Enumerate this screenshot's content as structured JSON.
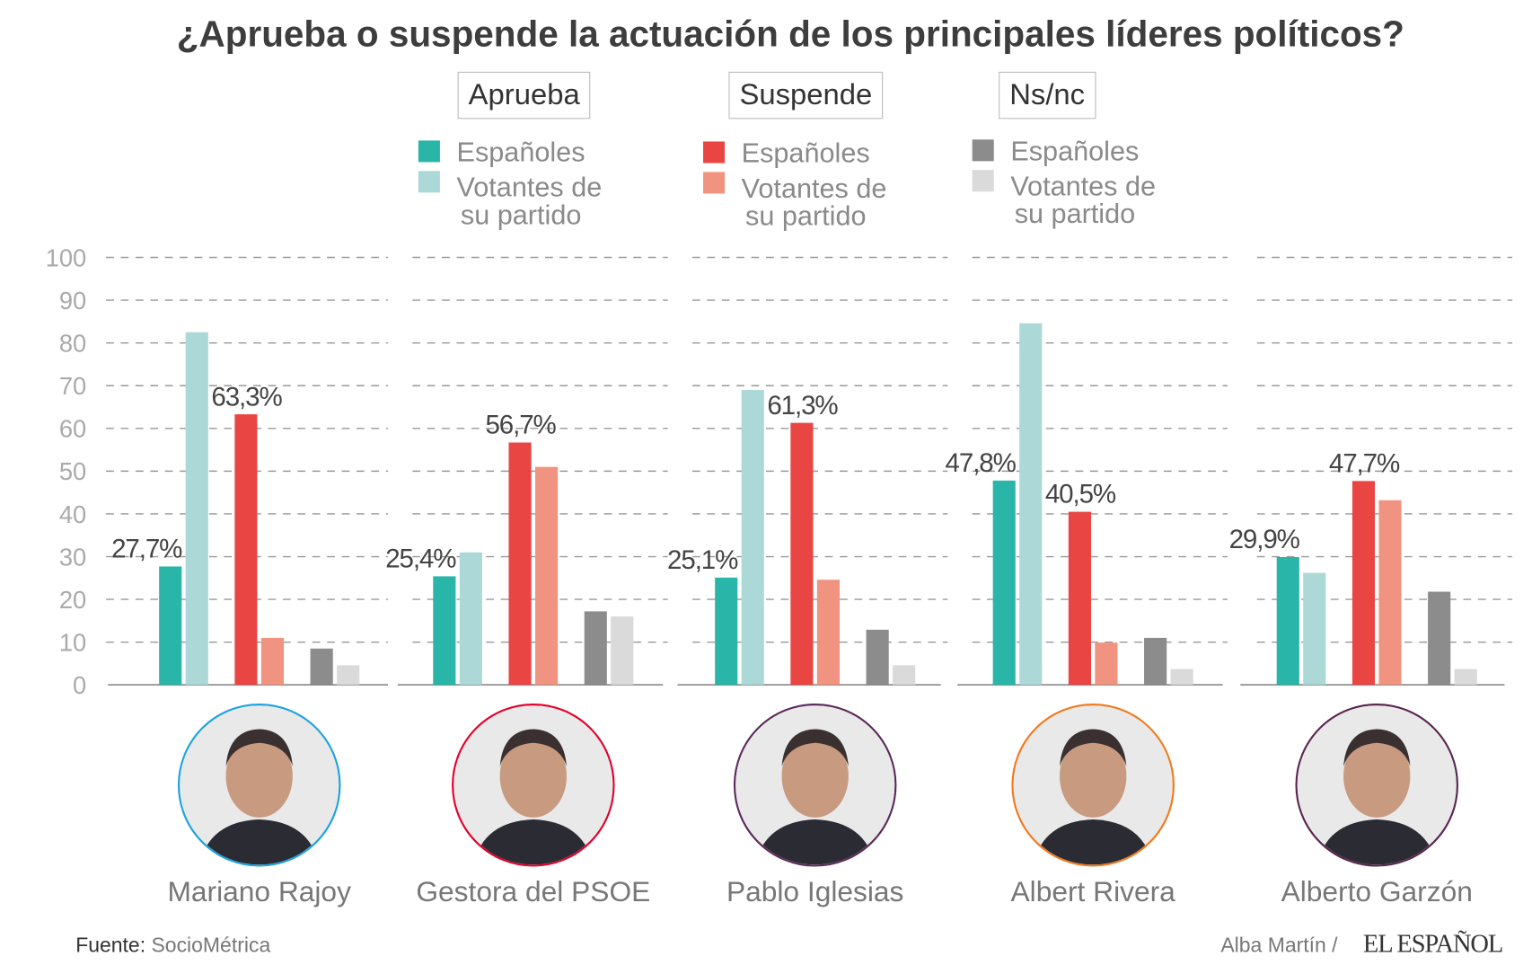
{
  "title": "¿Aprueba o suspende la actuación de los principales líderes políticos?",
  "headers": [
    "Aprueba",
    "Suspende",
    "Ns/nc"
  ],
  "legend": {
    "espanoles": "Españoles",
    "votantes_line1": "Votantes de",
    "votantes_line2": "su partido"
  },
  "colors": {
    "aprueba_espanoles": "#2ab5a9",
    "aprueba_votantes": "#acd9d7",
    "suspende_espanoles": "#e94643",
    "suspende_votantes": "#f19381",
    "nsnc_espanoles": "#8c8c8c",
    "nsnc_votantes": "#dadada"
  },
  "leaders": [
    {
      "name": "Mariano Rajoy",
      "border": "#1ca3e0"
    },
    {
      "name": "Gestora del PSOE",
      "border": "#e4002b"
    },
    {
      "name": "Pablo Iglesias",
      "border": "#5c2a5c"
    },
    {
      "name": "Albert Rivera",
      "border": "#f07a1e"
    },
    {
      "name": "Alberto Garzón",
      "border": "#5a2550"
    }
  ],
  "chart_data": {
    "type": "bar",
    "categories": [
      "Mariano Rajoy",
      "Gestora del PSOE",
      "Pablo Iglesias",
      "Albert Rivera",
      "Alberto Garzón"
    ],
    "ylim": [
      0,
      100
    ],
    "yticks": [
      "0",
      "10",
      "20",
      "30",
      "40",
      "50",
      "60",
      "70",
      "80",
      "90",
      "100"
    ],
    "grid": true,
    "series": [
      {
        "name": "Aprueba · Españoles",
        "values": [
          27.7,
          25.4,
          25.1,
          47.8,
          29.9
        ],
        "labels": [
          "27,7%",
          "25,4%",
          "25,1%",
          "47,8%",
          "29,9%"
        ]
      },
      {
        "name": "Aprueba · Votantes de su partido",
        "values": [
          82.5,
          31,
          69,
          84.6,
          26.2
        ]
      },
      {
        "name": "Suspende · Españoles",
        "values": [
          63.3,
          56.7,
          61.3,
          40.5,
          47.7
        ],
        "labels": [
          "63,3%",
          "56,7%",
          "61,3%",
          "40,5%",
          "47,7%"
        ]
      },
      {
        "name": "Suspende · Votantes de su partido",
        "values": [
          11,
          51,
          24.6,
          9.9,
          43.2
        ]
      },
      {
        "name": "Ns/nc · Españoles",
        "values": [
          8.5,
          17.2,
          12.9,
          11,
          21.8
        ]
      },
      {
        "name": "Ns/nc · Votantes de su partido",
        "values": [
          4.6,
          16,
          4.6,
          3.7,
          3.7
        ]
      }
    ]
  },
  "footer": {
    "source_label": "Fuente:",
    "source": "SocioMétrica",
    "author": "Alba Martín /",
    "logo": "EL ESPAÑOL"
  }
}
